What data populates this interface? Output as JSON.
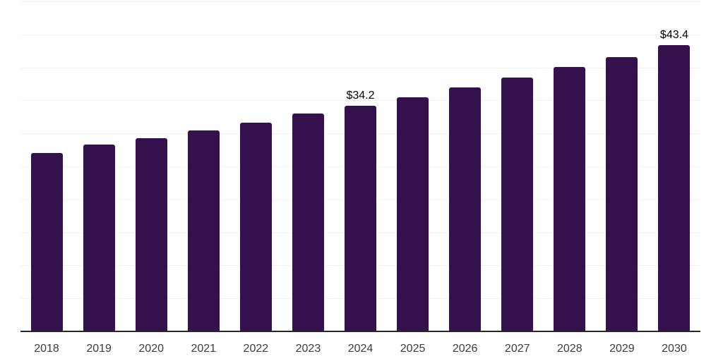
{
  "chart_data": {
    "type": "bar",
    "title": "",
    "xlabel": "",
    "ylabel": "",
    "categories": [
      "2018",
      "2019",
      "2020",
      "2021",
      "2022",
      "2023",
      "2024",
      "2025",
      "2026",
      "2027",
      "2028",
      "2029",
      "2030"
    ],
    "values": [
      27.0,
      28.3,
      29.3,
      30.5,
      31.6,
      33.0,
      34.2,
      35.5,
      37.0,
      38.5,
      40.1,
      41.6,
      43.4
    ],
    "data_labels": {
      "2024": "$34.2",
      "2030": "$43.4"
    },
    "ylim": [
      0,
      50
    ],
    "gridline_step": 5,
    "grid": "horizontal",
    "legend": "none",
    "y_tick_labels_visible": false,
    "colors": {
      "bar": "#34114d",
      "axis_line": "#262626",
      "gridline": "#f2f2f2",
      "data_label": "#000000",
      "tick_label": "#3c3c3c",
      "background": "#ffffff"
    }
  }
}
